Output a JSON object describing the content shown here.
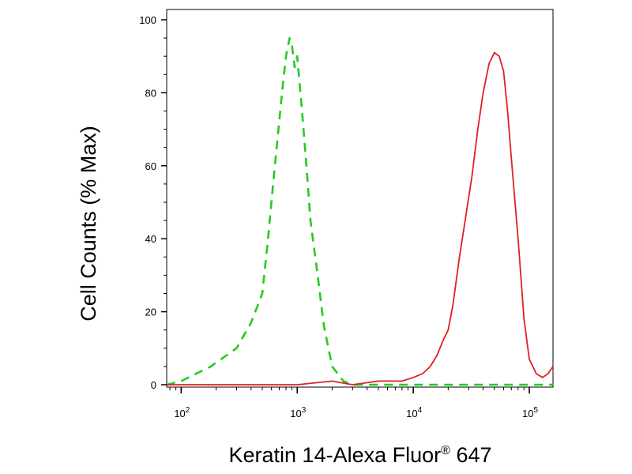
{
  "chart_data": {
    "type": "line",
    "title": "",
    "xlabel": "Keratin 14-Alexa Fluor",
    "xlabel_superscript": "®",
    "xlabel_suffix": " 647",
    "ylabel": "Cell Counts (% Max)",
    "x_scale": "log",
    "xlim": [
      75,
      160000
    ],
    "ylim": [
      0,
      100
    ],
    "x_ticks": [
      {
        "value": 100,
        "base": "10",
        "exp": "2"
      },
      {
        "value": 1000,
        "base": "10",
        "exp": "3"
      },
      {
        "value": 10000,
        "base": "10",
        "exp": "4"
      },
      {
        "value": 100000,
        "base": "10",
        "exp": "5"
      }
    ],
    "y_ticks": [
      {
        "value": 0,
        "label": "0"
      },
      {
        "value": 20,
        "label": "20"
      },
      {
        "value": 40,
        "label": "40"
      },
      {
        "value": 60,
        "label": "60"
      },
      {
        "value": 80,
        "label": "80"
      },
      {
        "value": 100,
        "label": "100"
      }
    ],
    "grid": false,
    "legend": "none",
    "series": [
      {
        "color": "#22cc22",
        "style": "dashed",
        "x": [
          75,
          100,
          180,
          300,
          400,
          500,
          560,
          620,
          680,
          740,
          800,
          860,
          900,
          950,
          1000,
          1100,
          1200,
          1300,
          1500,
          1700,
          2000,
          2500,
          3000,
          5000,
          10000,
          50000,
          160000
        ],
        "y": [
          0,
          1,
          5,
          10,
          17,
          25,
          40,
          55,
          68,
          80,
          90,
          95,
          93,
          87,
          90,
          75,
          60,
          45,
          30,
          16,
          5,
          1,
          0,
          0,
          0,
          0,
          0
        ]
      },
      {
        "color": "#e02020",
        "style": "solid",
        "x": [
          75,
          500,
          1000,
          2000,
          3000,
          5000,
          8000,
          10000,
          12000,
          14000,
          16000,
          18000,
          20000,
          22000,
          25000,
          28000,
          32000,
          36000,
          40000,
          45000,
          50000,
          55000,
          60000,
          65000,
          70000,
          80000,
          90000,
          100000,
          115000,
          130000,
          145000,
          160000
        ],
        "y": [
          0,
          0,
          0,
          1,
          0,
          1,
          1,
          2,
          3,
          5,
          8,
          12,
          15,
          22,
          35,
          45,
          57,
          70,
          80,
          88,
          91,
          90,
          86,
          75,
          62,
          40,
          18,
          7,
          3,
          2,
          3,
          5
        ]
      }
    ]
  }
}
